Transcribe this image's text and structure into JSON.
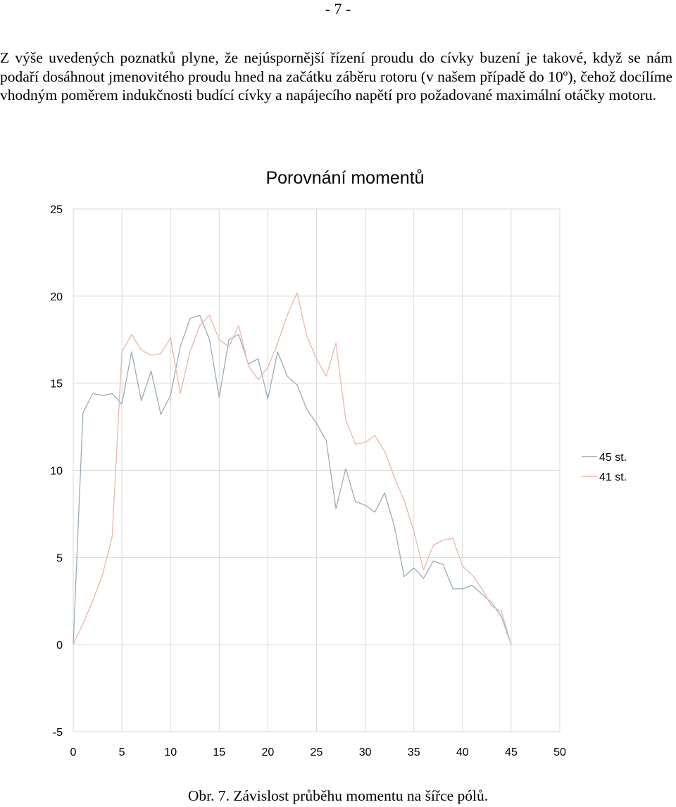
{
  "page": {
    "number": "- 7 -",
    "paragraph": "Z výše uvedených poznatků plyne, že nejúspornější řízení proudu do cívky buzení je takové, když se nám podaří dosáhnout jmenovitého proudu hned na začátku záběru rotoru (v našem případě do 10º), čehož docílíme vhodným poměrem indukčnosti budící cívky a napájecího napětí pro požadované maximální otáčky motoru.",
    "caption": "Obr. 7. Závislost průběhu momentu na šířce pólů."
  },
  "chart_data": {
    "type": "line",
    "title": "Porovnání momentů",
    "xlabel": "",
    "ylabel": "",
    "xlim": [
      0,
      50
    ],
    "ylim": [
      -5,
      25
    ],
    "xticks": [
      "0",
      "5",
      "10",
      "15",
      "20",
      "25",
      "30",
      "35",
      "40",
      "45",
      "50"
    ],
    "yticks": [
      "-5",
      "0",
      "5",
      "10",
      "15",
      "20",
      "25"
    ],
    "grid": true,
    "legend": "right",
    "series": [
      {
        "name": "45 st.",
        "color": "#9aabb5",
        "x": [
          0,
          1,
          2,
          3,
          4,
          5,
          6,
          7,
          8,
          9,
          10,
          11,
          12,
          13,
          14,
          15,
          16,
          17,
          18,
          19,
          20,
          21,
          22,
          23,
          24,
          25,
          26,
          27,
          28,
          29,
          30,
          31,
          32,
          33,
          34,
          35,
          36,
          37,
          38,
          39,
          40,
          41,
          42,
          43,
          44,
          45
        ],
        "y": [
          0,
          13.3,
          14.4,
          14.3,
          14.4,
          13.8,
          16.8,
          14.0,
          15.7,
          13.2,
          14.3,
          17.1,
          18.7,
          18.9,
          17.5,
          14.2,
          17.5,
          17.8,
          16.1,
          16.4,
          14.1,
          16.8,
          15.4,
          14.9,
          13.5,
          12.7,
          11.7,
          7.8,
          10.1,
          8.2,
          8.0,
          7.6,
          8.7,
          6.8,
          3.9,
          4.4,
          3.8,
          4.8,
          4.6,
          3.2,
          3.2,
          3.4,
          2.9,
          2.4,
          1.6,
          0
        ]
      },
      {
        "name": "41 st.",
        "color": "#e8b8a8",
        "x": [
          0,
          1,
          2,
          3,
          4,
          5,
          6,
          7,
          8,
          9,
          10,
          11,
          12,
          13,
          14,
          15,
          16,
          17,
          18,
          19,
          20,
          21,
          22,
          23,
          24,
          25,
          26,
          27,
          28,
          29,
          30,
          31,
          32,
          33,
          34,
          35,
          36,
          37,
          38,
          39,
          40,
          41,
          42,
          43,
          44,
          45
        ],
        "y": [
          0,
          1.2,
          2.5,
          4.0,
          6.2,
          16.8,
          17.8,
          16.9,
          16.6,
          16.7,
          17.6,
          14.4,
          16.8,
          18.3,
          18.9,
          17.5,
          17.1,
          18.3,
          16.0,
          15.2,
          15.9,
          17.3,
          18.9,
          20.2,
          17.7,
          16.4,
          15.4,
          17.3,
          12.9,
          11.5,
          11.6,
          12.0,
          11.1,
          9.6,
          8.3,
          6.5,
          4.3,
          5.7,
          6.0,
          6.1,
          4.5,
          4.0,
          3.2,
          2.2,
          1.9,
          0
        ]
      }
    ]
  }
}
